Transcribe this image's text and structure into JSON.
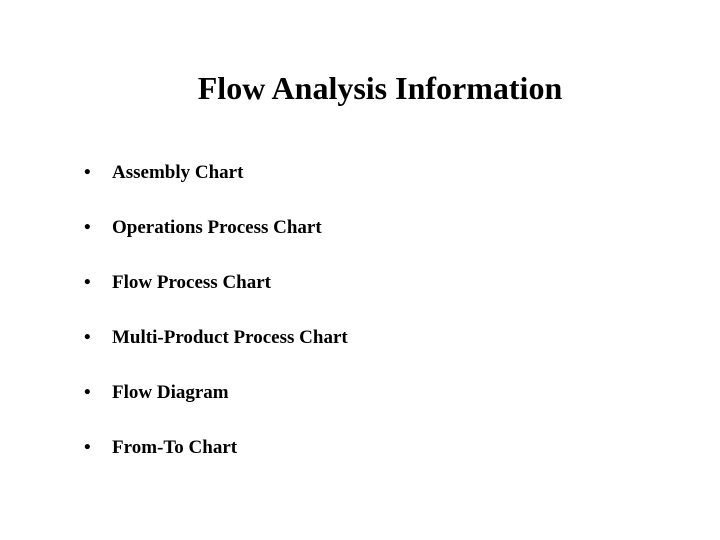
{
  "slide": {
    "title": "Flow Analysis Information",
    "bullets": [
      {
        "text": "Assembly Chart"
      },
      {
        "text": "Operations Process Chart"
      },
      {
        "text": "Flow Process Chart"
      },
      {
        "text": "Multi-Product Process Chart"
      },
      {
        "text": "Flow Diagram"
      },
      {
        "text": "From-To Chart"
      }
    ]
  },
  "style": {
    "background_color": "#ffffff",
    "text_color": "#000000",
    "font_family": "Times New Roman",
    "title_fontsize": 32,
    "title_fontweight": "bold",
    "bullet_fontsize": 19,
    "bullet_fontweight": "bold",
    "bullet_marker": "•",
    "bullet_spacing": 33
  }
}
